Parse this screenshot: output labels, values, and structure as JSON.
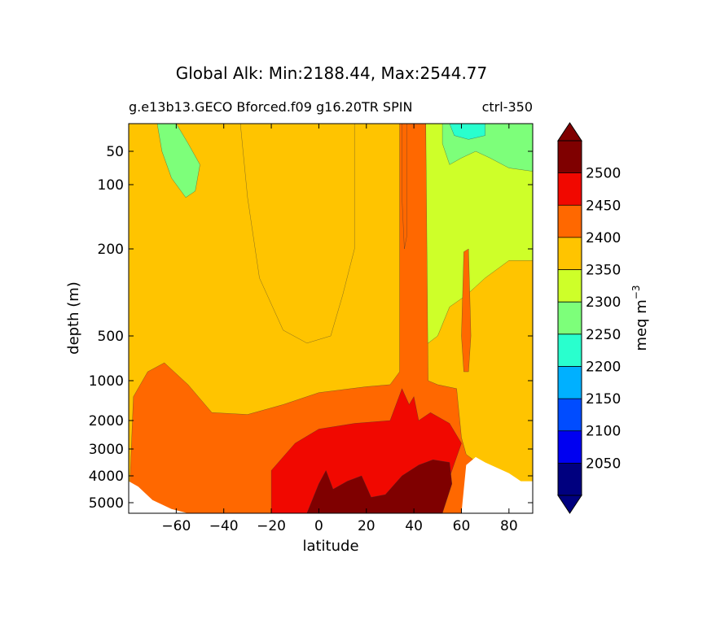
{
  "chart_data": {
    "type": "contour",
    "title": "Global Alk: Min:2188.44, Max:2544.77",
    "subtitle_left": "g.e13b13.GECO Bforced.f09 g16.20TR SPIN",
    "subtitle_right": "ctrl-350",
    "xlabel": "latitude",
    "ylabel": "depth (m)",
    "xlim": [
      -80,
      90
    ],
    "ylim": [
      5500,
      15
    ],
    "x_ticks": [
      -60,
      -40,
      -20,
      0,
      20,
      40,
      60,
      80
    ],
    "x_tick_labels": [
      "−60",
      "−40",
      "−20",
      "0",
      "20",
      "40",
      "60",
      "80"
    ],
    "y_ticks": [
      50,
      100,
      200,
      500,
      1000,
      2000,
      3000,
      4000,
      5000
    ],
    "y_tick_labels": [
      "50",
      "100",
      "200",
      "500",
      "1000",
      "2000",
      "3000",
      "4000",
      "5000"
    ],
    "colorbar": {
      "label": "meq m",
      "label_superscript": "−3",
      "levels": [
        2000,
        2050,
        2100,
        2150,
        2200,
        2250,
        2300,
        2350,
        2400,
        2450,
        2500,
        2550
      ],
      "tick_values": [
        2050,
        2100,
        2150,
        2200,
        2250,
        2300,
        2350,
        2400,
        2450,
        2500
      ],
      "colors": [
        "#00007f",
        "#0000f1",
        "#004cff",
        "#00b0ff",
        "#29ffce",
        "#7dff7a",
        "#ceff29",
        "#ffc400",
        "#ff6800",
        "#f10800",
        "#7f0000"
      ],
      "extend": "both"
    },
    "regions": [
      {
        "name": "band-2300-2350",
        "level_index": 6,
        "points": [
          [
            -80,
            15
          ],
          [
            -60,
            15
          ],
          [
            -55,
            60
          ],
          [
            -50,
            130
          ],
          [
            -45,
            200
          ],
          [
            -35,
            380
          ],
          [
            -25,
            560
          ],
          [
            -15,
            760
          ],
          [
            -5,
            960
          ],
          [
            10,
            1120
          ],
          [
            25,
            1260
          ],
          [
            30,
            1350
          ],
          [
            30,
            15
          ]
        ]
      },
      {
        "name": "band-2350-2400-deep",
        "level_index": 7,
        "points": [
          [
            -80,
            15
          ],
          [
            -80,
            5500
          ],
          [
            90,
            5500
          ],
          [
            90,
            15
          ]
        ]
      },
      {
        "name": "band-2250-2300-south",
        "level_index": 5,
        "points": [
          [
            -68,
            15
          ],
          [
            -60,
            15
          ],
          [
            -55,
            40
          ],
          [
            -50,
            70
          ],
          [
            -52,
            110
          ],
          [
            -56,
            120
          ],
          [
            -62,
            90
          ],
          [
            -66,
            50
          ]
        ]
      },
      {
        "name": "band-2350-upper-mid",
        "level_index": 7,
        "points": [
          [
            -33,
            15
          ],
          [
            15,
            15
          ],
          [
            15,
            200
          ],
          [
            10,
            360
          ],
          [
            5,
            500
          ],
          [
            -5,
            580
          ],
          [
            -15,
            480
          ],
          [
            -25,
            300
          ],
          [
            -30,
            120
          ]
        ]
      },
      {
        "name": "band-2300-north",
        "level_index": 6,
        "points": [
          [
            45,
            15
          ],
          [
            90,
            15
          ],
          [
            90,
            240
          ],
          [
            80,
            240
          ],
          [
            70,
            300
          ],
          [
            62,
            360
          ],
          [
            55,
            400
          ],
          [
            50,
            500
          ],
          [
            45,
            600
          ]
        ]
      },
      {
        "name": "band-2250-north",
        "level_index": 5,
        "points": [
          [
            52,
            15
          ],
          [
            90,
            15
          ],
          [
            90,
            80
          ],
          [
            80,
            75
          ],
          [
            72,
            60
          ],
          [
            66,
            50
          ],
          [
            60,
            60
          ],
          [
            55,
            70
          ],
          [
            52,
            40
          ]
        ]
      },
      {
        "name": "band-2200-north",
        "level_index": 4,
        "points": [
          [
            55,
            15
          ],
          [
            70,
            15
          ],
          [
            70,
            30
          ],
          [
            63,
            35
          ],
          [
            57,
            30
          ]
        ]
      },
      {
        "name": "band-2400-2450",
        "level_index": 8,
        "points": [
          [
            -78,
            1400
          ],
          [
            -72,
            900
          ],
          [
            -65,
            800
          ],
          [
            -55,
            1100
          ],
          [
            -45,
            1800
          ],
          [
            -30,
            1850
          ],
          [
            -15,
            1600
          ],
          [
            0,
            1300
          ],
          [
            20,
            1150
          ],
          [
            30,
            1100
          ],
          [
            34,
            900
          ],
          [
            34,
            15
          ],
          [
            40,
            15
          ],
          [
            45,
            15
          ],
          [
            46,
            1000
          ],
          [
            50,
            1100
          ],
          [
            58,
            1200
          ],
          [
            60,
            2600
          ],
          [
            62,
            3200
          ],
          [
            65,
            3400
          ],
          [
            60,
            5500
          ],
          [
            -80,
            5500
          ]
        ]
      },
      {
        "name": "band-2450-2500",
        "level_index": 9,
        "points": [
          [
            -20,
            3800
          ],
          [
            -10,
            2800
          ],
          [
            0,
            2300
          ],
          [
            15,
            2100
          ],
          [
            30,
            2000
          ],
          [
            35,
            1200
          ],
          [
            38,
            1600
          ],
          [
            40,
            1400
          ],
          [
            42,
            2000
          ],
          [
            47,
            1800
          ],
          [
            55,
            2100
          ],
          [
            60,
            2800
          ],
          [
            56,
            3800
          ],
          [
            50,
            5500
          ],
          [
            -20,
            5500
          ]
        ]
      },
      {
        "name": "band-2500-2550",
        "level_index": 10,
        "points": [
          [
            -5,
            5500
          ],
          [
            0,
            4300
          ],
          [
            3,
            3800
          ],
          [
            6,
            4500
          ],
          [
            12,
            4200
          ],
          [
            18,
            4000
          ],
          [
            22,
            4800
          ],
          [
            28,
            4700
          ],
          [
            35,
            4000
          ],
          [
            42,
            3600
          ],
          [
            48,
            3400
          ],
          [
            55,
            3500
          ],
          [
            56,
            4300
          ],
          [
            52,
            5500
          ]
        ]
      },
      {
        "name": "column-2400-north",
        "level_index": 8,
        "points": [
          [
            61,
            210
          ],
          [
            63,
            200
          ],
          [
            64,
            500
          ],
          [
            63,
            900
          ],
          [
            61,
            900
          ],
          [
            60,
            500
          ]
        ]
      },
      {
        "name": "column-2400-eq",
        "level_index": 8,
        "points": [
          [
            35,
            15
          ],
          [
            37,
            15
          ],
          [
            37,
            180
          ],
          [
            36,
            200
          ],
          [
            35,
            120
          ]
        ]
      }
    ],
    "land_mask": [
      {
        "points": [
          [
            60,
            5500
          ],
          [
            62,
            3600
          ],
          [
            66,
            3300
          ],
          [
            70,
            3500
          ],
          [
            75,
            3700
          ],
          [
            80,
            3900
          ],
          [
            85,
            4200
          ],
          [
            90,
            4200
          ],
          [
            90,
            5500
          ]
        ]
      },
      {
        "points": [
          [
            -80,
            4200
          ],
          [
            -76,
            4400
          ],
          [
            -70,
            4900
          ],
          [
            -62,
            5300
          ],
          [
            -55,
            5500
          ],
          [
            -80,
            5500
          ]
        ]
      }
    ]
  }
}
